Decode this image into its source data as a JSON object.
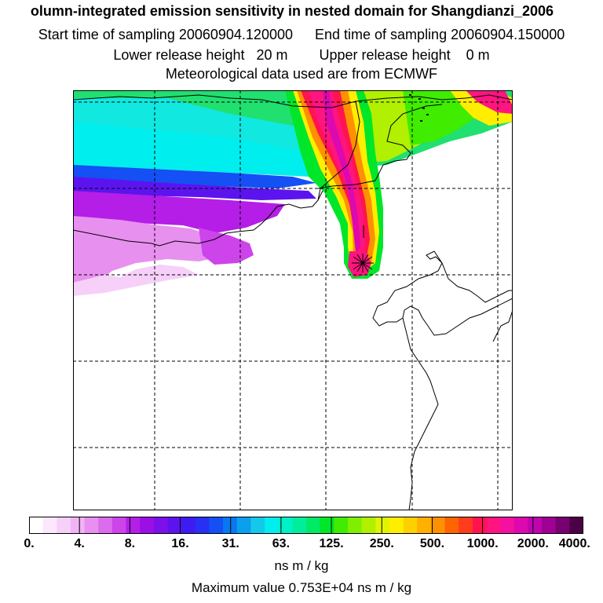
{
  "header": {
    "title": "olumn-integrated emission sensitivity in nested domain for Shangdianzi_2006",
    "start_label": "Start time of sampling 20060904.120000",
    "end_label": "End time of sampling 20060904.150000",
    "lower_label": "Lower release height   20 m",
    "upper_label": "Upper release height    0 m",
    "met_label": "Meteorological data used are from ECMWF"
  },
  "colorbar": {
    "labels": [
      "0.",
      "4.",
      "8.",
      "16.",
      "31.",
      "63.",
      "125.",
      "250.",
      "500.",
      "1000.",
      "2000.",
      "4000."
    ],
    "colors": [
      "#ffffff",
      "#fce8fc",
      "#f6d0f8",
      "#f0b4f4",
      "#e890f0",
      "#dc6cec",
      "#cc44ea",
      "#b41ee6",
      "#9b0ee6",
      "#7c10ea",
      "#5c14ee",
      "#3c1cf2",
      "#2830f4",
      "#1450f4",
      "#0878f0",
      "#0aa0ee",
      "#14c8ec",
      "#00eeee",
      "#00f0c8",
      "#00ee9c",
      "#00ea64",
      "#00e628",
      "#40ec00",
      "#80ee00",
      "#b0f000",
      "#e0f400",
      "#ffee00",
      "#ffd000",
      "#ffb000",
      "#ff9000",
      "#ff6400",
      "#ff3c1c",
      "#ff1450",
      "#ff1480",
      "#f410a0",
      "#dc08b0",
      "#c004b0",
      "#a00094",
      "#780070",
      "#4c0048"
    ],
    "units": "ns m / kg",
    "max_value_text": "Maximum value  0.753E+04 ns m / kg"
  }
}
